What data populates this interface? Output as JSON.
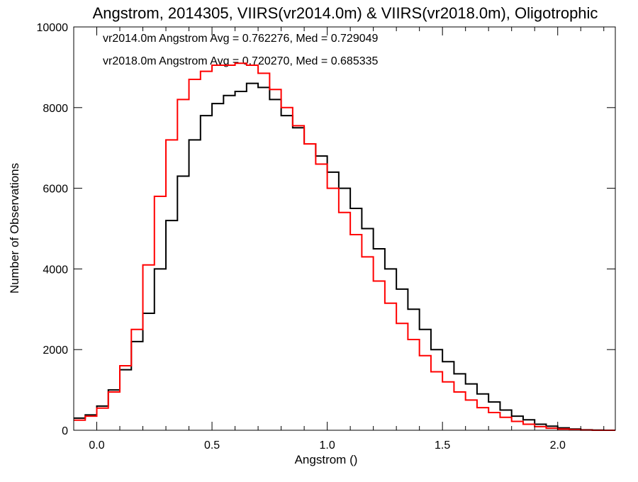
{
  "chart_data": {
    "type": "line",
    "title": "Angstrom, 2014305, VIIRS(vr2014.0m) & VIIRS(vr2018.0m), Oligotrophic",
    "xlabel": "Angstrom ()",
    "ylabel": "Number of Observations",
    "xlim": [
      -0.1,
      2.25
    ],
    "ylim": [
      0,
      10000
    ],
    "xticks": [
      0.0,
      0.5,
      1.0,
      1.5,
      2.0
    ],
    "xtick_labels": [
      "0.0",
      "0.5",
      "1.0",
      "1.5",
      "2.0"
    ],
    "yticks": [
      0,
      2000,
      4000,
      6000,
      8000,
      10000
    ],
    "ytick_labels": [
      "0",
      "2000",
      "4000",
      "6000",
      "8000",
      "10000"
    ],
    "grid": false,
    "legend_position": "top-left",
    "annotations": [
      {
        "text": "vr2014.0m Angstrom Avg = 0.762276, Med = 0.729049",
        "color": "#000000"
      },
      {
        "text": "vr2018.0m Angstrom Avg = 0.720270, Med = 0.685335",
        "color": "#ff0000"
      }
    ],
    "series": [
      {
        "color": "#000000",
        "x": [
          -0.1,
          -0.05,
          0.0,
          0.05,
          0.1,
          0.15,
          0.2,
          0.25,
          0.3,
          0.35,
          0.4,
          0.45,
          0.5,
          0.55,
          0.6,
          0.65,
          0.7,
          0.75,
          0.8,
          0.85,
          0.9,
          0.95,
          1.0,
          1.05,
          1.1,
          1.15,
          1.2,
          1.25,
          1.3,
          1.35,
          1.4,
          1.45,
          1.5,
          1.55,
          1.6,
          1.65,
          1.7,
          1.75,
          1.8,
          1.85,
          1.9,
          1.95,
          2.0,
          2.05,
          2.1,
          2.15,
          2.2,
          2.25
        ],
        "values": [
          300,
          380,
          600,
          1000,
          1500,
          2200,
          2900,
          4000,
          5200,
          6300,
          7200,
          7800,
          8100,
          8300,
          8400,
          8600,
          8500,
          8200,
          7800,
          7500,
          7100,
          6800,
          6400,
          6000,
          5500,
          5000,
          4500,
          4000,
          3500,
          3000,
          2500,
          2000,
          1700,
          1400,
          1150,
          900,
          700,
          500,
          350,
          260,
          150,
          100,
          60,
          30,
          10,
          5,
          0,
          0
        ]
      },
      {
        "color": "#ff0000",
        "x": [
          -0.1,
          -0.05,
          0.0,
          0.05,
          0.1,
          0.15,
          0.2,
          0.25,
          0.3,
          0.35,
          0.4,
          0.45,
          0.5,
          0.55,
          0.6,
          0.65,
          0.7,
          0.75,
          0.8,
          0.85,
          0.9,
          0.95,
          1.0,
          1.05,
          1.1,
          1.15,
          1.2,
          1.25,
          1.3,
          1.35,
          1.4,
          1.45,
          1.5,
          1.55,
          1.6,
          1.65,
          1.7,
          1.75,
          1.8,
          1.85,
          1.9,
          1.95,
          2.0,
          2.05,
          2.1,
          2.15,
          2.2,
          2.25
        ],
        "values": [
          250,
          350,
          550,
          950,
          1600,
          2500,
          4100,
          5800,
          7200,
          8200,
          8700,
          8900,
          9050,
          9050,
          9100,
          9050,
          8850,
          8450,
          8000,
          7550,
          7100,
          6600,
          6000,
          5400,
          4850,
          4300,
          3700,
          3150,
          2650,
          2250,
          1850,
          1450,
          1200,
          950,
          750,
          560,
          440,
          320,
          220,
          150,
          90,
          50,
          30,
          15,
          5,
          0,
          0,
          0
        ]
      }
    ]
  },
  "colors": {
    "background": "#ffffff",
    "axis": "#000000"
  }
}
